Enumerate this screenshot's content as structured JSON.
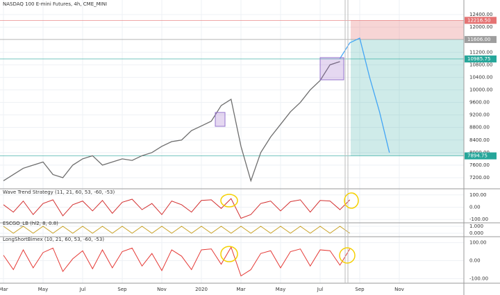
{
  "chart_data": [
    {
      "type": "line",
      "title": "NASDAQ 100 E-mini Futures, 4h, CME_MINI",
      "categories": [
        "Mar",
        null,
        null,
        null,
        "May",
        null,
        null,
        null,
        "Jul",
        null,
        null,
        null,
        "Sep",
        null,
        null,
        null,
        "Nov",
        null,
        null,
        null,
        "2020",
        null,
        null,
        null,
        "Mar",
        null,
        null,
        null,
        "May",
        null,
        null,
        null,
        "Jul",
        null,
        null,
        null,
        "Sep",
        null,
        null,
        null,
        "Nov",
        null,
        null,
        null,
        null,
        null,
        null
      ],
      "series": [
        {
          "color": "#6e6e6e",
          "values": [
            7100,
            7300,
            7500,
            7600,
            7700,
            7300,
            7200,
            7600,
            7800,
            7900,
            7600,
            7700,
            7800,
            7750,
            7900,
            8000,
            8200,
            8350,
            8400,
            8700,
            8850,
            9000,
            9500,
            9700,
            8200,
            7100,
            8000,
            8500,
            8900,
            9300,
            9600,
            10000,
            10300,
            10800,
            10900,
            null,
            null,
            null,
            null,
            null,
            null,
            null,
            null,
            null,
            null,
            null,
            null
          ]
        },
        {
          "color": "#42a5f5",
          "values": [
            null,
            null,
            null,
            null,
            null,
            null,
            null,
            null,
            null,
            null,
            null,
            null,
            null,
            null,
            null,
            null,
            null,
            null,
            null,
            null,
            null,
            null,
            null,
            null,
            null,
            null,
            null,
            null,
            null,
            null,
            null,
            null,
            null,
            null,
            11000,
            11500,
            11650,
            10400,
            9300,
            8000,
            null,
            null,
            null,
            null,
            null,
            null,
            null
          ]
        }
      ],
      "ylim": [
        7000,
        12600
      ],
      "yticks": [
        {
          "value": 7200,
          "label": "7200.00"
        },
        {
          "value": 7600,
          "label": "7600.00"
        },
        {
          "value": 8000,
          "label": "8000.00"
        },
        {
          "value": 8400,
          "label": "8400.00"
        },
        {
          "value": 8800,
          "label": "8800.00"
        },
        {
          "value": 9200,
          "label": "9200.00"
        },
        {
          "value": 9600,
          "label": "9600.00"
        },
        {
          "value": 10000,
          "label": "10000.00"
        },
        {
          "value": 10400,
          "label": "10400.00"
        },
        {
          "value": 10800,
          "label": "10800.00"
        },
        {
          "value": 11200,
          "label": "11200.00"
        },
        {
          "value": 12000,
          "label": "12000.00"
        },
        {
          "value": 12400,
          "label": "12400.00"
        }
      ],
      "price_labels": [
        {
          "value": 12216.5,
          "label": "12216.50",
          "color": "#e57373"
        },
        {
          "value": 11606,
          "label": "11606.00",
          "color": "#9e9e9e"
        },
        {
          "value": 10985.75,
          "label": "10985.75",
          "color": "#26a69a"
        },
        {
          "value": 7894.75,
          "label": "7894.75",
          "color": "#26a69a"
        }
      ],
      "grid": true
    },
    {
      "type": "line",
      "title": "Wave Trend Strategy (11, 21, 60, 53, -60, -53)",
      "series": [
        {
          "color": "#d32f2f",
          "values": [
            20,
            -40,
            50,
            -60,
            30,
            60,
            -70,
            20,
            50,
            -30,
            55,
            -50,
            40,
            65,
            -20,
            30,
            -60,
            50,
            20,
            -40,
            55,
            60,
            -10,
            70,
            -90,
            -60,
            30,
            50,
            -30,
            45,
            60,
            -40,
            55,
            50,
            -20,
            60,
            null,
            null,
            null,
            null,
            null,
            null,
            null,
            null,
            null,
            null,
            null
          ]
        }
      ],
      "ylim": [
        -110,
        110
      ],
      "yticks": [
        {
          "value": 100,
          "label": "100.00"
        },
        {
          "value": 0,
          "label": "0.00"
        },
        {
          "value": -100,
          "label": "-100.00"
        }
      ]
    },
    {
      "type": "line",
      "title": "ESCGO_LB (hl2, 8, 0.8)",
      "series": [
        {
          "color": "#c9a227",
          "values": [
            1,
            0,
            1,
            0,
            1,
            0,
            1,
            0,
            1,
            0,
            1,
            0,
            1,
            0,
            1,
            0,
            1,
            0,
            1,
            0,
            1,
            0,
            1,
            0,
            1,
            0,
            1,
            0,
            1,
            0,
            1,
            0,
            1,
            0,
            1,
            0,
            null,
            null,
            null,
            null,
            null,
            null,
            null,
            null,
            null,
            null,
            null
          ]
        }
      ],
      "ylim": [
        -0.2,
        1.2
      ],
      "yticks": [
        {
          "value": 1,
          "label": "1.000"
        },
        {
          "value": 0,
          "label": "0.000"
        }
      ]
    },
    {
      "type": "line",
      "title": "LongShortBimex (10, 21, 60, 53, -60, -53)",
      "series": [
        {
          "color": "#e53935",
          "values": [
            30,
            -50,
            60,
            -40,
            45,
            70,
            -60,
            10,
            55,
            -45,
            60,
            -40,
            50,
            70,
            -30,
            40,
            -55,
            60,
            25,
            -50,
            60,
            65,
            -20,
            75,
            -85,
            -50,
            40,
            55,
            -40,
            50,
            65,
            -30,
            60,
            55,
            -25,
            65,
            null,
            null,
            null,
            null,
            null,
            null,
            null,
            null,
            null,
            null,
            null
          ]
        }
      ],
      "ylim": [
        -110,
        110
      ],
      "yticks": [
        {
          "value": 100,
          "label": "100.00"
        },
        {
          "value": 0,
          "label": "0.00"
        },
        {
          "value": -100,
          "label": "-100.00"
        }
      ]
    }
  ]
}
